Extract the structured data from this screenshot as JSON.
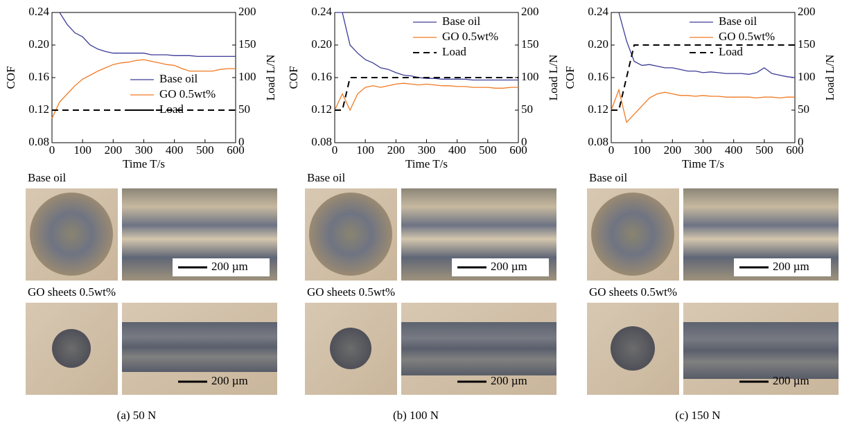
{
  "chart_data": [
    {
      "type": "line",
      "x": [
        0,
        25,
        50,
        75,
        100,
        125,
        150,
        175,
        200,
        225,
        250,
        275,
        300,
        325,
        350,
        375,
        400,
        425,
        450,
        475,
        500,
        525,
        550,
        575,
        600
      ],
      "xlim": [
        0,
        600
      ],
      "xticks": [
        0,
        100,
        200,
        300,
        400,
        500,
        600
      ],
      "xlabel": "Time  T/s",
      "ylim": [
        0.08,
        0.24
      ],
      "yticks": [
        0.08,
        0.12,
        0.16,
        {
          "value": 0.2,
          "label": "0.20"
        },
        0.24
      ],
      "ylabel": "COF",
      "y2lim": [
        0,
        200
      ],
      "y2ticks": [
        0,
        50,
        100,
        150,
        200
      ],
      "y2label": "Load  L/N",
      "legend": "lower right",
      "series": [
        {
          "name": "Base oil",
          "color": "#3a3a96",
          "values": [
            null,
            0.24,
            0.225,
            0.215,
            0.21,
            0.2,
            0.195,
            0.192,
            0.19,
            0.19,
            0.19,
            0.19,
            0.19,
            0.188,
            0.188,
            0.188,
            0.187,
            0.187,
            0.187,
            0.186,
            0.186,
            0.186,
            0.186,
            0.186,
            0.186
          ]
        },
        {
          "name": "GO 0.5wt%",
          "color": "#f07a22",
          "values": [
            0.11,
            0.13,
            0.14,
            0.15,
            0.158,
            0.163,
            0.168,
            0.172,
            0.176,
            0.178,
            0.179,
            0.181,
            0.182,
            0.18,
            0.178,
            0.176,
            0.175,
            0.171,
            0.168,
            0.168,
            0.168,
            0.168,
            0.17,
            0.171,
            0.171
          ]
        },
        {
          "name": "Load",
          "color": "#000000",
          "linestyle": "dashed",
          "axis": "y2",
          "values": [
            50,
            50,
            50,
            50,
            50,
            50,
            50,
            50,
            50,
            50,
            50,
            50,
            50,
            50,
            50,
            50,
            50,
            50,
            50,
            50,
            50,
            50,
            50,
            50,
            50
          ]
        }
      ]
    },
    {
      "type": "line",
      "x": [
        0,
        25,
        50,
        75,
        100,
        125,
        150,
        175,
        200,
        225,
        250,
        275,
        300,
        325,
        350,
        375,
        400,
        425,
        450,
        475,
        500,
        525,
        550,
        575,
        600
      ],
      "xlim": [
        0,
        600
      ],
      "xticks": [
        0,
        100,
        200,
        300,
        400,
        500,
        600
      ],
      "xlabel": "Time  T/s",
      "ylim": [
        0.08,
        0.24
      ],
      "yticks": [
        0.08,
        0.12,
        0.16,
        {
          "value": 0.2,
          "label": "0.20"
        },
        0.24
      ],
      "ylabel": "COF",
      "y2lim": [
        0,
        200
      ],
      "y2ticks": [
        0,
        50,
        100,
        150,
        200
      ],
      "y2label": "Load  L/N",
      "legend": "upper right",
      "series": [
        {
          "name": "Base oil",
          "color": "#3a3a96",
          "values": [
            0.24,
            0.24,
            0.2,
            0.19,
            0.182,
            0.178,
            0.172,
            0.17,
            0.166,
            0.163,
            0.162,
            0.16,
            0.159,
            0.159,
            0.158,
            0.158,
            0.158,
            0.158,
            0.157,
            0.157,
            0.157,
            0.157,
            0.157,
            0.157,
            0.157
          ]
        },
        {
          "name": "GO 0.5wt%",
          "color": "#f07a22",
          "values": [
            0.12,
            0.14,
            0.12,
            0.14,
            0.148,
            0.15,
            0.148,
            0.15,
            0.152,
            0.153,
            0.152,
            0.151,
            0.152,
            0.151,
            0.15,
            0.15,
            0.149,
            0.149,
            0.148,
            0.148,
            0.148,
            0.147,
            0.147,
            0.148,
            0.148
          ]
        },
        {
          "name": "Load",
          "color": "#000000",
          "linestyle": "dashed",
          "axis": "y2",
          "values": [
            50,
            50,
            100,
            100,
            100,
            100,
            100,
            100,
            100,
            100,
            100,
            100,
            100,
            100,
            100,
            100,
            100,
            100,
            100,
            100,
            100,
            100,
            100,
            100,
            100
          ]
        }
      ]
    },
    {
      "type": "line",
      "x": [
        0,
        25,
        50,
        75,
        100,
        125,
        150,
        175,
        200,
        225,
        250,
        275,
        300,
        325,
        350,
        375,
        400,
        425,
        450,
        475,
        500,
        525,
        550,
        575,
        600
      ],
      "xlim": [
        0,
        600
      ],
      "xticks": [
        0,
        100,
        200,
        300,
        400,
        500,
        600
      ],
      "xlabel": "Time  T/s",
      "ylim": [
        0.08,
        0.24
      ],
      "yticks": [
        0.08,
        0.12,
        0.16,
        {
          "value": 0.2,
          "label": "0.20"
        },
        0.24
      ],
      "ylabel": "COF",
      "y2lim": [
        0,
        200
      ],
      "y2ticks": [
        0,
        50,
        100,
        150,
        200
      ],
      "y2label": "Load  L/N",
      "legend": "upper right",
      "series": [
        {
          "name": "Base oil",
          "color": "#3a3a96",
          "values": [
            null,
            0.24,
            0.205,
            0.18,
            0.175,
            0.176,
            0.174,
            0.172,
            0.172,
            0.17,
            0.168,
            0.168,
            0.166,
            0.167,
            0.166,
            0.165,
            0.165,
            0.165,
            0.164,
            0.166,
            0.172,
            0.165,
            0.163,
            0.161,
            0.16
          ]
        },
        {
          "name": "GO 0.5wt%",
          "color": "#f07a22",
          "values": [
            0.12,
            0.145,
            0.105,
            0.115,
            0.125,
            0.135,
            0.14,
            0.142,
            0.14,
            0.138,
            0.138,
            0.137,
            0.138,
            0.137,
            0.137,
            0.136,
            0.136,
            0.136,
            0.136,
            0.135,
            0.136,
            0.136,
            0.135,
            0.136,
            0.136
          ]
        },
        {
          "name": "Load",
          "color": "#000000",
          "linestyle": "dashed",
          "axis": "y2",
          "values": [
            50,
            50,
            100,
            150,
            150,
            150,
            150,
            150,
            150,
            150,
            150,
            150,
            150,
            150,
            150,
            150,
            150,
            150,
            150,
            150,
            150,
            150,
            150,
            150,
            150
          ]
        }
      ]
    }
  ],
  "panels": [
    {
      "caption": "(a) 50 N",
      "rows": [
        {
          "label": "Base oil",
          "scale_bar": "200 µm"
        },
        {
          "label": "GO sheets 0.5wt%",
          "scale_bar": "200 µm"
        }
      ]
    },
    {
      "caption": "(b) 100 N",
      "rows": [
        {
          "label": "Base oil",
          "scale_bar": "200 µm"
        },
        {
          "label": "GO sheets 0.5wt%",
          "scale_bar": "200 µm"
        }
      ]
    },
    {
      "caption": "(c) 150 N",
      "rows": [
        {
          "label": "Base oil",
          "scale_bar": "200 µm"
        },
        {
          "label": "GO sheets 0.5wt%",
          "scale_bar": "200 µm"
        }
      ]
    }
  ]
}
